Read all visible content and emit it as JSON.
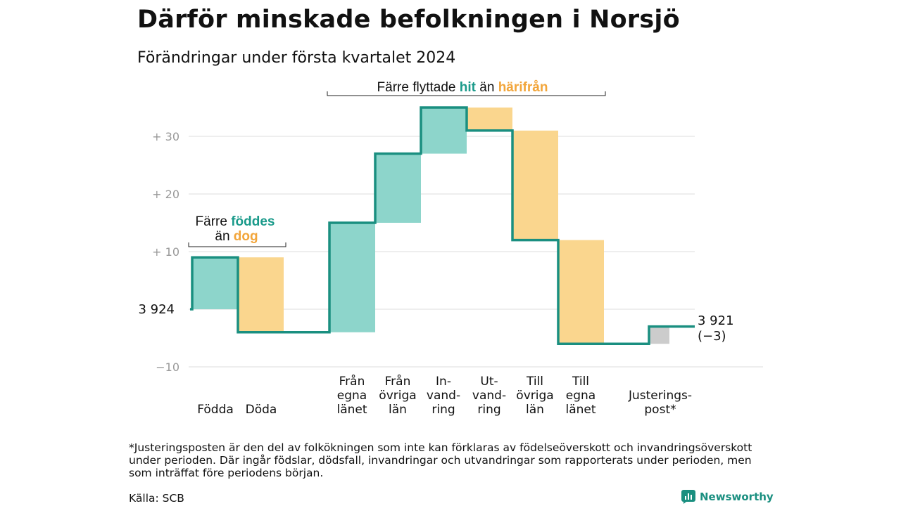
{
  "title": "Därför minskade befolkningen i Norsjö",
  "subtitle": "Förändringar under första kvartalet 2024",
  "colors": {
    "increase": "#8dd5cb",
    "decrease": "#fad68e",
    "adjustment": "#cccccc",
    "line": "#1a8f80",
    "teal_text": "#1a9a8a",
    "orange_text": "#f2a53a",
    "grid": "#dddddd"
  },
  "chart_data": {
    "type": "waterfall",
    "baseline": 0,
    "ylim": [
      -12,
      40
    ],
    "yticks": [
      -10,
      10,
      20,
      30
    ],
    "ytick_labels": [
      "−10",
      "+ 10",
      "+ 20",
      "+ 30"
    ],
    "start_label": "3 924",
    "end_label": [
      "3 921",
      "(−3)"
    ],
    "categories": [
      {
        "lines": [
          "Födda"
        ],
        "value": 9,
        "kind": "increase"
      },
      {
        "lines": [
          "Döda"
        ],
        "value": -13,
        "kind": "decrease"
      },
      {
        "lines": [
          "Från",
          "egna",
          "länet"
        ],
        "value": 19,
        "kind": "increase"
      },
      {
        "lines": [
          "Från",
          "övriga",
          "län"
        ],
        "value": 12,
        "kind": "increase"
      },
      {
        "lines": [
          "In-",
          "vand-",
          "ring"
        ],
        "value": 8,
        "kind": "increase"
      },
      {
        "lines": [
          "Ut-",
          "vand-",
          "ring"
        ],
        "value": -4,
        "kind": "decrease"
      },
      {
        "lines": [
          "Till",
          "övriga",
          "län"
        ],
        "value": -19,
        "kind": "decrease"
      },
      {
        "lines": [
          "Till",
          "egna",
          "länet"
        ],
        "value": -18,
        "kind": "decrease"
      },
      {
        "lines": [
          "Justerings-",
          "post*"
        ],
        "value": 3,
        "kind": "adjustment"
      }
    ],
    "annotations": {
      "births": {
        "parts": [
          "Färre ",
          "föddes",
          "än ",
          "dog"
        ]
      },
      "moves": {
        "parts": [
          "Färre flyttade ",
          "hit",
          " än ",
          "härifrån"
        ]
      }
    }
  },
  "footnote": "*Justeringsposten är den del av folkökningen som inte kan förklaras av födelseöverskott och invandringsöverskott under perioden. Där ingår födslar, dödsfall, invandringar och utvandringar som rapporterats under perioden, men som inträffat före periodens början.",
  "source": "Källa: SCB",
  "brand": "Newsworthy"
}
